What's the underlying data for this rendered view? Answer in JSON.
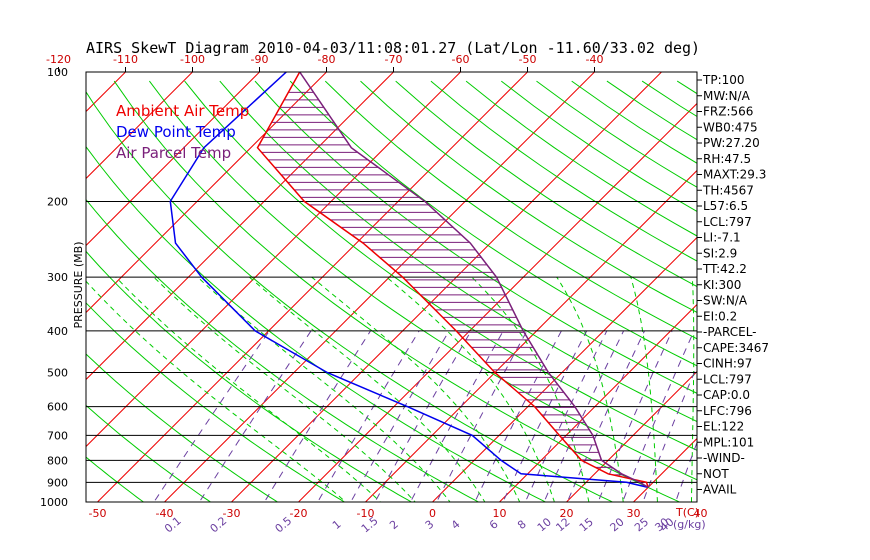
{
  "chart_data": {
    "type": "line",
    "title": "AIRS SkewT Diagram 2010-04-03/11:08:01.27 (Lat/Lon -11.60/33.02 deg)",
    "ylabel": "PRESSURE (MB)",
    "xlabel": "T(C)",
    "mixing_ratio_label": "(g/kg)",
    "y_scale": "log",
    "ylim": [
      1000,
      100
    ],
    "xlim": [
      -50,
      40
    ],
    "pressure_ticks": [
      {
        "p": 100,
        "label": "100"
      },
      {
        "p": 200,
        "label": "200"
      },
      {
        "p": 300,
        "label": "300"
      },
      {
        "p": 400,
        "label": "400"
      },
      {
        "p": 500,
        "label": "500"
      },
      {
        "p": 600,
        "label": "600"
      },
      {
        "p": 700,
        "label": "700"
      },
      {
        "p": 800,
        "label": "800"
      },
      {
        "p": 900,
        "label": "900"
      },
      {
        "p": 1000,
        "label": "1000"
      }
    ],
    "top_temp_ticks": [
      {
        "t": -120,
        "label": "-120"
      },
      {
        "t": -110,
        "label": "-110"
      },
      {
        "t": -100,
        "label": "-100"
      },
      {
        "t": -90,
        "label": "-90"
      },
      {
        "t": -80,
        "label": "-80"
      },
      {
        "t": -70,
        "label": "-70"
      },
      {
        "t": -60,
        "label": "-60"
      },
      {
        "t": -50,
        "label": "-50"
      },
      {
        "t": -40,
        "label": "-40"
      }
    ],
    "bottom_temp_ticks": [
      {
        "t": -50,
        "label": "-50"
      },
      {
        "t": -40,
        "label": "-40"
      },
      {
        "t": -30,
        "label": "-30"
      },
      {
        "t": -20,
        "label": "-20"
      },
      {
        "t": -10,
        "label": "-10"
      },
      {
        "t": 0,
        "label": "0"
      },
      {
        "t": 10,
        "label": "10"
      },
      {
        "t": 20,
        "label": "20"
      },
      {
        "t": 30,
        "label": "30"
      },
      {
        "t": 40,
        "label": "40"
      }
    ],
    "mixing_ratio_ticks": [
      "0.1",
      "0.2",
      "0.5",
      "1",
      "1.5",
      "2",
      "3",
      "4",
      "6",
      "8",
      "10",
      "12",
      "15",
      "20",
      "25",
      "30",
      "40"
    ],
    "legend": [
      {
        "label": "Ambient Air Temp",
        "color": "#ee0000"
      },
      {
        "label": "Dew Point Temp",
        "color": "#0000ee"
      },
      {
        "label": "Air Parcel Temp",
        "color": "#7a1f7a"
      }
    ],
    "series": [
      {
        "name": "Ambient Air Temp",
        "color": "#ee0000",
        "points": [
          [
            100,
            -84
          ],
          [
            150,
            -79
          ],
          [
            200,
            -64
          ],
          [
            250,
            -49
          ],
          [
            300,
            -38
          ],
          [
            400,
            -22
          ],
          [
            500,
            -10
          ],
          [
            600,
            1
          ],
          [
            700,
            9
          ],
          [
            800,
            16
          ],
          [
            860,
            22
          ],
          [
            900,
            29
          ],
          [
            925,
            30
          ]
        ]
      },
      {
        "name": "Dew Point Temp",
        "color": "#0000ee",
        "points": [
          [
            100,
            -86
          ],
          [
            150,
            -87
          ],
          [
            200,
            -84
          ],
          [
            250,
            -77
          ],
          [
            300,
            -68
          ],
          [
            400,
            -52
          ],
          [
            500,
            -35
          ],
          [
            600,
            -18
          ],
          [
            700,
            -4
          ],
          [
            800,
            4
          ],
          [
            860,
            9
          ],
          [
            900,
            26
          ],
          [
            925,
            30
          ]
        ]
      },
      {
        "name": "Air Parcel Temp",
        "color": "#7a1f7a",
        "points": [
          [
            100,
            -84
          ],
          [
            150,
            -65
          ],
          [
            200,
            -46
          ],
          [
            250,
            -33
          ],
          [
            300,
            -24
          ],
          [
            400,
            -12
          ],
          [
            500,
            -2
          ],
          [
            600,
            7
          ],
          [
            700,
            14
          ],
          [
            800,
            19
          ],
          [
            860,
            24
          ],
          [
            900,
            28
          ],
          [
            925,
            30
          ]
        ]
      }
    ],
    "indices": [
      "TP:100",
      "MW:N/A",
      "FRZ:566",
      "WB0:475",
      "PW:27.20",
      "RH:47.5",
      "MAXT:29.3",
      "TH:4567",
      "L57:6.5",
      "LCL:797",
      "LI:-7.1",
      "SI:2.9",
      "TT:42.2",
      "KI:300",
      "SW:N/A",
      "EI:0.2",
      "-PARCEL-",
      "CAPE:3467",
      "CINH:97",
      "LCL:797",
      "CAP:0.0",
      "LFC:796",
      "EL:122",
      "MPL:101",
      "-WIND-",
      "NOT",
      "AVAIL"
    ],
    "grid": true,
    "colors": {
      "isotherm": "#ee0000",
      "dry_adiabat": "#00cc00",
      "moist_adiabat": "#00cc00",
      "mixing_ratio": "#6b3fa0",
      "isobar": "#000000",
      "cape_hatch": "#7a1f7a"
    }
  }
}
